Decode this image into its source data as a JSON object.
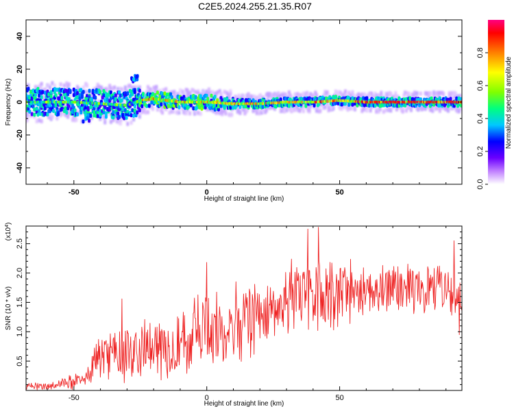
{
  "title": "C2E5.2024.255.21.35.R07",
  "chart_data": [
    {
      "type": "heatmap",
      "xlabel": "Height of straight line (km)",
      "ylabel": "Frequency (Hz)",
      "xlim": [
        -68,
        96
      ],
      "ylim": [
        -50,
        50
      ],
      "x_ticks": [
        "-50",
        "0",
        "50"
      ],
      "y_ticks": [
        "40",
        "20",
        "0",
        "-20",
        "-40"
      ],
      "colorbar": {
        "label": "Normalized spectral amplitude",
        "range": [
          0,
          1
        ],
        "ticks": [
          "0.0",
          "0.2",
          "0.4",
          "0.6",
          "0.8"
        ],
        "colors": [
          "#ffffff",
          "#c080ff",
          "#6a00ff",
          "#0000ff",
          "#00c8ff",
          "#00ff80",
          "#80ff00",
          "#ffff00",
          "#ff8000",
          "#ff0000",
          "#ff0080"
        ]
      },
      "ridge": {
        "x": [
          -68,
          -50,
          -40,
          -30,
          -25,
          -20,
          -10,
          0,
          10,
          20,
          30,
          40,
          50,
          60,
          70,
          80,
          90,
          96
        ],
        "y": [
          0,
          0,
          -1,
          -2,
          1,
          2,
          0,
          0,
          -1,
          -1,
          0,
          0,
          1,
          0,
          0,
          0,
          0,
          0
        ]
      },
      "secondary_blobs": [
        {
          "x": -27,
          "y": 14
        },
        {
          "x": -45,
          "y": -10
        }
      ],
      "series": []
    },
    {
      "type": "line",
      "xlabel": "Height of straight line (km)",
      "ylabel": "SNR (10 * v/v)",
      "y_multiplier": "(x10",
      "y_multiplier_exp": "4",
      "y_multiplier_close": ")",
      "xlim": [
        -68,
        96
      ],
      "ylim": [
        0,
        2.8
      ],
      "x_ticks": [
        "-50",
        "0",
        "50"
      ],
      "y_ticks": [
        "0.5",
        "1.0",
        "1.5",
        "2.0",
        "2.5"
      ],
      "color": "#ee2020",
      "envelope": {
        "x": [
          -68,
          -60,
          -55,
          -50,
          -45,
          -41,
          -35,
          -30,
          -25,
          -20,
          -10,
          0,
          10,
          20,
          30,
          40,
          50,
          60,
          70,
          80,
          90,
          96
        ],
        "mean": [
          0.06,
          0.08,
          0.12,
          0.18,
          0.28,
          0.55,
          0.65,
          0.62,
          0.66,
          0.72,
          0.85,
          0.98,
          1.12,
          1.35,
          1.52,
          1.62,
          1.68,
          1.72,
          1.72,
          1.72,
          1.66,
          1.6
        ],
        "amp": [
          0.06,
          0.07,
          0.1,
          0.14,
          0.18,
          0.35,
          0.42,
          0.48,
          0.45,
          0.5,
          0.6,
          0.65,
          0.65,
          0.6,
          0.6,
          0.6,
          0.55,
          0.45,
          0.4,
          0.4,
          0.42,
          0.45
        ]
      },
      "peaks": [
        {
          "x": 38,
          "y": 2.75
        },
        {
          "x": 42,
          "y": 2.78
        },
        {
          "x": 93,
          "y": 2.55
        },
        {
          "x": -32,
          "y": 1.56
        },
        {
          "x": 0,
          "y": 2.18
        },
        {
          "x": 95,
          "y": 0.95
        }
      ]
    }
  ]
}
